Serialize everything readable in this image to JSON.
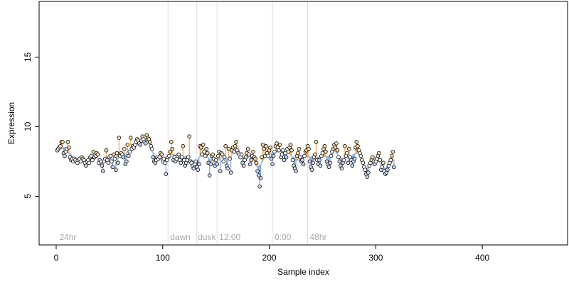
{
  "chart_data": {
    "type": "scatter",
    "title": "",
    "xlabel": "Sample index",
    "ylabel": "Expression",
    "xlim": [
      -16,
      480
    ],
    "ylim": [
      1.5,
      19
    ],
    "x_ticks": [
      0,
      100,
      200,
      300,
      400
    ],
    "y_ticks": [
      5,
      10,
      15
    ],
    "grid": false,
    "legend": "none",
    "colors": {
      "points_stroke": "#000000",
      "high_segment": "#f5a64a",
      "low_segment": "#7fa2d6",
      "baseline": "#a8c0e8",
      "divider": "#dddddd",
      "condition_label": "#a8a8a8"
    },
    "condition_boundaries": [
      105,
      132,
      151,
      203,
      236
    ],
    "condition_labels": [
      {
        "text": "24hr",
        "x": 3
      },
      {
        "text": "dawn",
        "x": 107
      },
      {
        "text": "dusk",
        "x": 133
      },
      {
        "text": "12:00",
        "x": 153
      },
      {
        "text": "0:00",
        "x": 205
      },
      {
        "text": "48hr",
        "x": 238
      }
    ],
    "series": [
      {
        "x_start": 1,
        "values": [
          8.3,
          8.4,
          8.5,
          8.6,
          8.9,
          8.9,
          8.1,
          7.9,
          8.2,
          8.4,
          8.9,
          8.5,
          7.8,
          7.6,
          7.7,
          7.5,
          7.7,
          7.6,
          7.5,
          7.4,
          7.6,
          7.7,
          7.5,
          7.8,
          7.7,
          7.6,
          7.4,
          7.2,
          7.5,
          7.6,
          7.4,
          7.8,
          7.9,
          7.6,
          8.2,
          7.8,
          7.9,
          8.1,
          8.0,
          7.4,
          7.6,
          7.5,
          7.2,
          6.8,
          7.5,
          7.7,
          8.3,
          7.6,
          7.4,
          7.8,
          7.9,
          7.5,
          7.1,
          8.0,
          7.7,
          6.9,
          8.1,
          7.4,
          9.2,
          7.9,
          8.1,
          8.0,
          7.8,
          8.4,
          7.3,
          7.5,
          8.7,
          7.9,
          8.2,
          9.2,
          8.4,
          8.6,
          8.5,
          8.7,
          8.9,
          9.1,
          9.0,
          8.8,
          8.7,
          9.0,
          9.3,
          9.1,
          8.9,
          8.8,
          9.4,
          9.2,
          9.1,
          8.9,
          8.6,
          8.4,
          7.8,
          7.5,
          7.4,
          7.6,
          7.8,
          7.7,
          7.8,
          8.1,
          8.0,
          7.5,
          7.7,
          7.4,
          6.6,
          7.6,
          7.8,
          7.9,
          8.2,
          8.9,
          8.4,
          7.6,
          7.8,
          7.5,
          7.7,
          7.9,
          8.0,
          7.6,
          7.4,
          7.8,
          8.6,
          7.6,
          7.2,
          7.4,
          7.6,
          7.8,
          9.3,
          7.5,
          7.4,
          7.2,
          7.0,
          7.3,
          7.5,
          7.1,
          6.9,
          7.3,
          8.6,
          8.5,
          8.0,
          8.7,
          8.2,
          7.9,
          8.4,
          8.1,
          7.4,
          6.5,
          7.3,
          7.9,
          8.0,
          7.7,
          7.2,
          7.6,
          7.3,
          7.9,
          8.2,
          6.8,
          8.1,
          8.0,
          7.5,
          7.8,
          8.6,
          7.2,
          7.0,
          8.4,
          7.7,
          6.7,
          8.3,
          8.5,
          8.2,
          8.6,
          8.9,
          8.3,
          8.1,
          8.0,
          7.8,
          8.0,
          7.4,
          7.2,
          7.6,
          7.8,
          8.1,
          8.4,
          8.0,
          7.3,
          7.6,
          7.9,
          8.2,
          7.8,
          7.7,
          7.4,
          6.8,
          6.5,
          5.7,
          6.3,
          7.8,
          8.7,
          8.4,
          7.9,
          8.6,
          8.1,
          7.9,
          8.3,
          8.5,
          7.7,
          7.3,
          7.9,
          8.2,
          8.6,
          8.8,
          8.5,
          8.3,
          8.7,
          7.8,
          8.0,
          8.3,
          7.6,
          8.1,
          7.8,
          8.4,
          8.2,
          8.5,
          8.7,
          8.3,
          7.6,
          7.2,
          7.0,
          6.8,
          7.9,
          8.1,
          8.4,
          7.8,
          7.5,
          7.6,
          7.3,
          7.9,
          8.2,
          8.3,
          8.6,
          8.4,
          7.5,
          7.1,
          6.9,
          7.4,
          7.8,
          8.0,
          8.9,
          7.6,
          7.3,
          7.6,
          7.2,
          7.9,
          8.1,
          8.4,
          8.6,
          8.2,
          7.5,
          7.3,
          7.1,
          7.4,
          7.9,
          8.2,
          8.4,
          8.7,
          8.5,
          8.8,
          8.3,
          7.8,
          7.5,
          7.2,
          7.0,
          7.4,
          7.6,
          8.6,
          7.9,
          8.1,
          7.4,
          8.4,
          7.8,
          7.6,
          7.2,
          7.5,
          7.7,
          8.5,
          8.9,
          8.6,
          8.3,
          8.1,
          7.9,
          7.6,
          7.4,
          7.1,
          6.9,
          6.6,
          6.4,
          6.7,
          7.2,
          7.4,
          7.6,
          7.8,
          7.5,
          7.3,
          7.5,
          7.7,
          7.9,
          8.1,
          7.6,
          6.9,
          7.1,
          7.4,
          6.8,
          6.6,
          6.7,
          6.9,
          7.2,
          7.4,
          7.6,
          7.9,
          8.2,
          7.1
        ]
      }
    ]
  }
}
